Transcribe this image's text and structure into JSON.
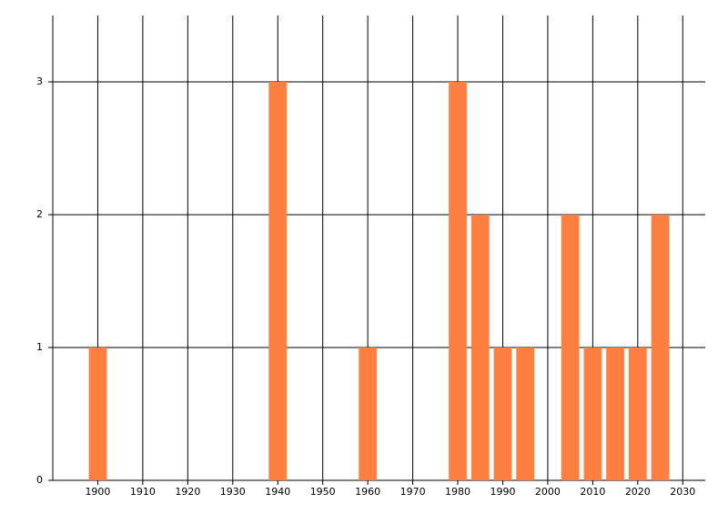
{
  "chart_data": {
    "type": "bar",
    "x": [
      1900,
      1940,
      1960,
      1980,
      1985,
      1990,
      1995,
      2005,
      2010,
      2015,
      2020,
      2025
    ],
    "values": [
      1,
      3,
      1,
      3,
      2,
      1,
      1,
      2,
      1,
      1,
      1,
      2
    ],
    "color": "#ff7f40",
    "xlim": [
      1890,
      2035
    ],
    "xticks": [
      1900,
      1910,
      1920,
      1930,
      1940,
      1950,
      1960,
      1970,
      1980,
      1990,
      2000,
      2010,
      2020,
      2030
    ],
    "ylim": [
      0,
      3.5
    ],
    "yticks": [
      0,
      1,
      2,
      3
    ],
    "grid": true
  }
}
